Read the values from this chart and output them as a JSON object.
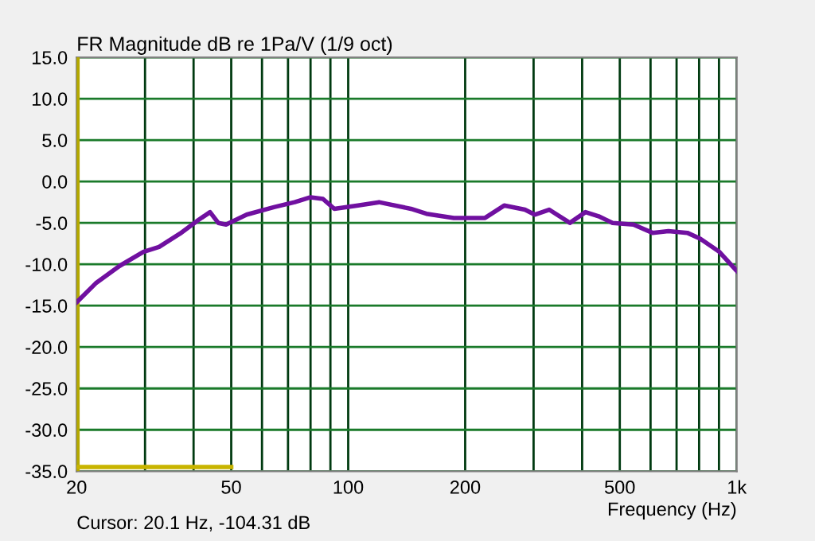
{
  "chart_data": {
    "type": "line",
    "title": "FR Magnitude dB re 1Pa/V (1/9 oct)",
    "xlabel": "Frequency (Hz)",
    "annotations": [
      "Cursor: 20.1 Hz, -104.31 dB"
    ],
    "log": "x",
    "grid": true,
    "legend": false,
    "xlim": [
      20,
      1000
    ],
    "ylim": [
      -35,
      15
    ],
    "xticks": [
      20,
      {
        "value": 30,
        "label": null
      },
      {
        "value": 40,
        "label": null
      },
      50,
      {
        "value": 60,
        "label": null
      },
      {
        "value": 70,
        "label": null
      },
      {
        "value": 80,
        "label": null
      },
      {
        "value": 90,
        "label": null
      },
      100,
      200,
      {
        "value": 300,
        "label": null
      },
      {
        "value": 400,
        "label": null
      },
      500,
      {
        "value": 600,
        "label": null
      },
      {
        "value": 700,
        "label": null
      },
      {
        "value": 800,
        "label": null
      },
      {
        "value": 900,
        "label": null
      },
      {
        "value": 1000,
        "label": "1k"
      }
    ],
    "yticks": [
      {
        "value": 15,
        "label": "15.0"
      },
      {
        "value": 10,
        "label": "10.0"
      },
      {
        "value": 5,
        "label": "5.0"
      },
      {
        "value": 0,
        "label": "0.0"
      },
      {
        "value": -5,
        "label": "-5.0"
      },
      {
        "value": -10,
        "label": "-10.0"
      },
      {
        "value": -15,
        "label": "-15.0"
      },
      {
        "value": -20,
        "label": "-20.0"
      },
      {
        "value": -25,
        "label": "-25.0"
      },
      {
        "value": -30,
        "label": "-30.0"
      },
      {
        "value": -35,
        "label": "-35.0"
      }
    ],
    "ref_lines": [
      {
        "axis": "x",
        "value": 20.1,
        "color": "#b4a800"
      }
    ],
    "series": [
      {
        "color": "#7010a0",
        "x": [
          20,
          22.4,
          25.8,
          29.7,
          32.6,
          36.9,
          41.3,
          44.1,
          46.3,
          48.5,
          54.8,
          64.4,
          72.8,
          80,
          86.1,
          92.1,
          106,
          120,
          145,
          159,
          187,
          225,
          252,
          285,
          302,
          329,
          372,
          408,
          441,
          479,
          542,
          607,
          667,
          746,
          805,
          902,
          1000
        ],
        "values": [
          -14.6,
          -12.3,
          -10.2,
          -8.5,
          -7.9,
          -6.3,
          -4.6,
          -3.7,
          -5.0,
          -5.2,
          -4.0,
          -3.1,
          -2.5,
          -1.9,
          -2.1,
          -3.3,
          -2.9,
          -2.5,
          -3.3,
          -3.9,
          -4.4,
          -4.4,
          -2.9,
          -3.4,
          -4.0,
          -3.4,
          -5.0,
          -3.7,
          -4.2,
          -5.0,
          -5.2,
          -6.2,
          -6.0,
          -6.2,
          -6.9,
          -8.5,
          -10.8
        ]
      },
      {
        "color": "#c8b400",
        "x": [
          20,
          50
        ],
        "values": [
          -34.5,
          -34.5
        ]
      }
    ]
  }
}
